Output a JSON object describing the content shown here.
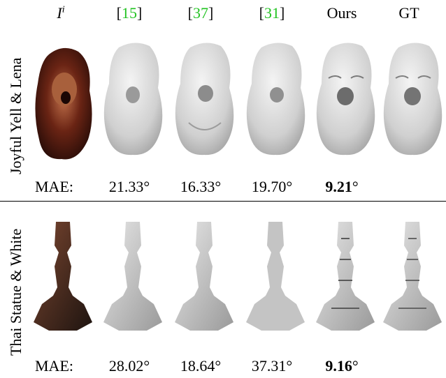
{
  "header": {
    "input_I": "I",
    "input_sup": "i",
    "ref15": "15",
    "ref37": "37",
    "ref31": "31",
    "ours": "Ours",
    "gt": "GT"
  },
  "rows": [
    {
      "label": "Joyful Yell & Lena",
      "mae_label": "MAE:",
      "values": [
        "21.33°",
        "16.33°",
        "19.70°"
      ],
      "best_num": "9.21",
      "best_deg": "°"
    },
    {
      "label": "Thai Statue & White",
      "mae_label": "MAE:",
      "values": [
        "28.02°",
        "18.64°",
        "37.31°"
      ],
      "best_num": "9.16",
      "best_deg": "°"
    }
  ],
  "colors": {
    "citation": "#22c322",
    "input_row1": "#6a2414",
    "input_row2": "#3a2418",
    "render": "#d8d8d8"
  }
}
